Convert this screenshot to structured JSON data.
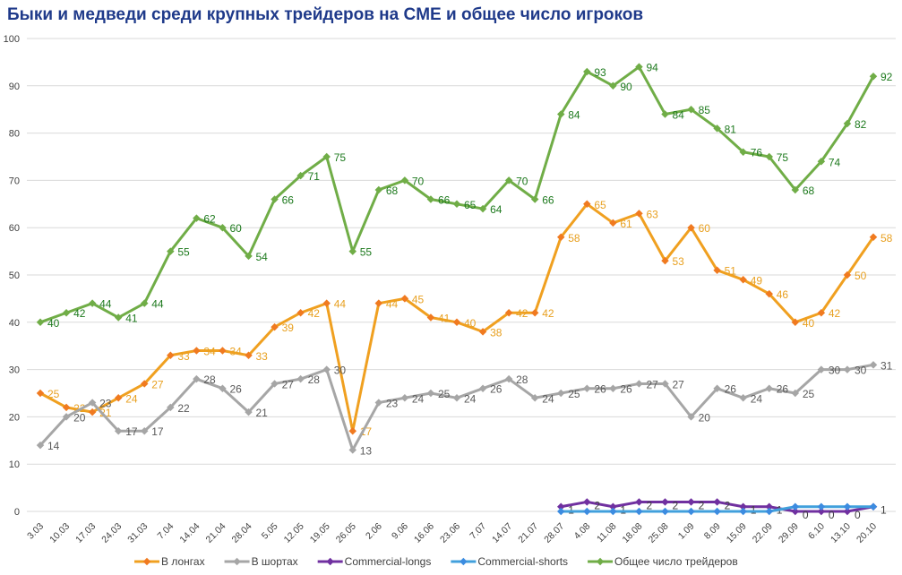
{
  "chart_data": {
    "type": "line",
    "title": "Быки и медведи среди крупных трейдеров на CME и общее число игроков",
    "ylim": [
      0,
      100
    ],
    "yticks": [
      0,
      10,
      20,
      30,
      40,
      50,
      60,
      70,
      80,
      90,
      100
    ],
    "grid": true,
    "legend_position": "bottom",
    "categories": [
      "3.03",
      "10.03",
      "17.03",
      "24.03",
      "31.03",
      "7.04",
      "14.04",
      "21.04",
      "28.04",
      "5.05",
      "12.05",
      "19.05",
      "26.05",
      "2.06",
      "9.06",
      "16.06",
      "23.06",
      "7.07",
      "14.07",
      "21.07",
      "28.07",
      "4.08",
      "11.08",
      "18.08",
      "25.08",
      "1.09",
      "8.09",
      "15.09",
      "22.09",
      "29.09",
      "6.10",
      "13.10",
      "20.10"
    ],
    "series": [
      {
        "name": "В лонгах",
        "color": "#f0a020",
        "marker": "#f07a20",
        "label_color": "#e8a020",
        "values": [
          25,
          22,
          21,
          24,
          27,
          33,
          34,
          34,
          33,
          39,
          42,
          44,
          17,
          44,
          45,
          41,
          40,
          38,
          42,
          42,
          58,
          65,
          61,
          63,
          53,
          60,
          51,
          49,
          46,
          40,
          42,
          50,
          58
        ]
      },
      {
        "name": "В шортах",
        "color": "#a6a6a6",
        "marker": "#a6a6a6",
        "label_color": "#595959",
        "values": [
          14,
          20,
          23,
          17,
          17,
          22,
          28,
          26,
          21,
          27,
          28,
          30,
          13,
          23,
          24,
          25,
          24,
          26,
          28,
          24,
          25,
          26,
          26,
          27,
          27,
          20,
          26,
          24,
          26,
          25,
          30,
          30,
          31
        ]
      },
      {
        "name": "Commercial-longs",
        "color": "#7030a0",
        "marker": "#7030a0",
        "label_color": "#404040",
        "values": [
          null,
          null,
          null,
          null,
          null,
          null,
          null,
          null,
          null,
          null,
          null,
          null,
          null,
          null,
          null,
          null,
          null,
          null,
          null,
          null,
          1,
          2,
          1,
          2,
          2,
          2,
          2,
          1,
          1,
          0,
          0,
          0,
          1
        ]
      },
      {
        "name": "Commercial-shorts",
        "color": "#41a0dc",
        "marker": "#3c8ce0",
        "label_color": "#404040",
        "values": [
          null,
          null,
          null,
          null,
          null,
          null,
          null,
          null,
          null,
          null,
          null,
          null,
          null,
          null,
          null,
          null,
          null,
          null,
          null,
          null,
          0,
          0,
          0,
          0,
          0,
          0,
          0,
          0,
          0,
          1,
          1,
          1,
          1
        ]
      },
      {
        "name": "Общее число трейдеров",
        "color": "#70ad47",
        "marker": "#70ad47",
        "label_color": "#1e7a1e",
        "values": [
          40,
          42,
          44,
          41,
          44,
          55,
          62,
          60,
          54,
          66,
          71,
          75,
          55,
          68,
          70,
          66,
          65,
          64,
          70,
          66,
          84,
          93,
          90,
          94,
          84,
          85,
          81,
          76,
          75,
          68,
          74,
          82,
          92
        ]
      }
    ]
  }
}
